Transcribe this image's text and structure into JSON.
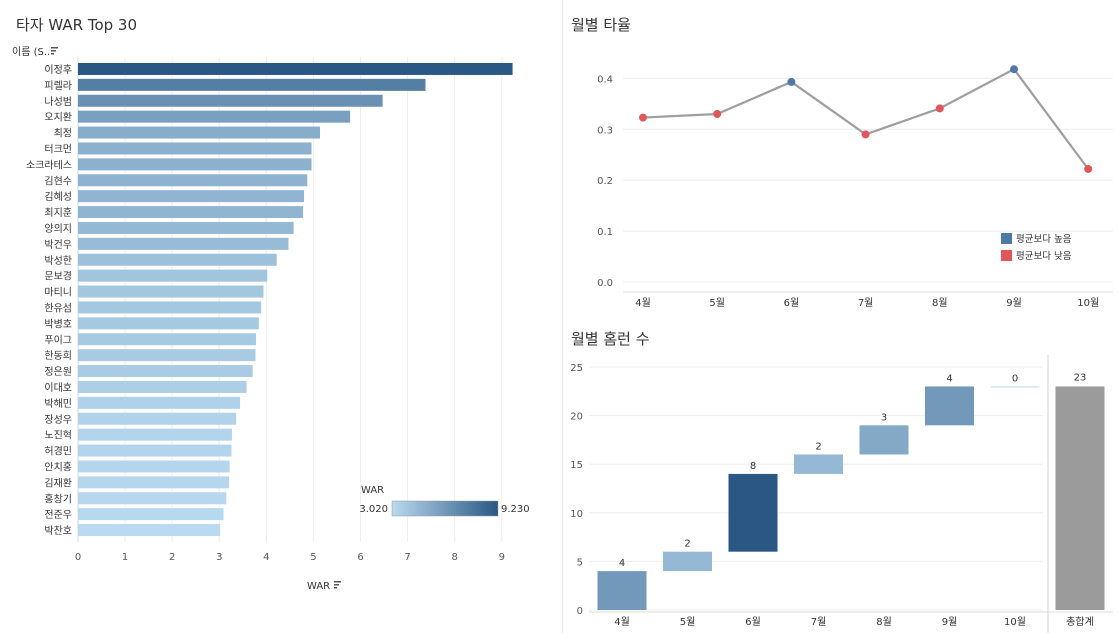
{
  "colors": {
    "bar_low": "#b9daf0",
    "bar_high": "#2a5783",
    "line": "#9e9e9e",
    "above_avg": "#4e79a7",
    "below_avg": "#e15759",
    "total_bar": "#9b9b9b",
    "grid": "#eeeeee"
  },
  "war_panel": {
    "title": "타자 WAR Top 30",
    "row_header": "이름 (S..",
    "sort_icon": "sort-descending-icon",
    "legend_title": "WAR",
    "legend_min": "3.020",
    "legend_max": "9.230"
  },
  "batting_panel": {
    "title": "월별 타율",
    "legend": [
      {
        "label": "평균보다 높음",
        "color": "#4e79a7"
      },
      {
        "label": "평균보다 낮음",
        "color": "#e15759"
      }
    ]
  },
  "hr_panel": {
    "title": "월별 홈런 수"
  },
  "chart_data": [
    {
      "type": "bar",
      "orientation": "horizontal",
      "title": "타자 WAR Top 30",
      "xlabel": "WAR",
      "ylabel": "이름 (S..",
      "xlim": [
        0,
        9.6
      ],
      "xticks": [
        0,
        1,
        2,
        3,
        4,
        5,
        6,
        7,
        8,
        9
      ],
      "categories": [
        "이정후",
        "피렐라",
        "나성범",
        "오지환",
        "최정",
        "터크먼",
        "소크라테스",
        "김현수",
        "김혜성",
        "최지훈",
        "양의지",
        "박건우",
        "박성한",
        "문보경",
        "마티니",
        "한유섬",
        "박병호",
        "푸이그",
        "한동희",
        "정은원",
        "이대호",
        "박해민",
        "장성우",
        "노진혁",
        "허경민",
        "안치홍",
        "김재환",
        "홍창기",
        "전준우",
        "박찬호"
      ],
      "values": [
        9.23,
        7.38,
        6.47,
        5.78,
        5.14,
        4.96,
        4.96,
        4.87,
        4.8,
        4.78,
        4.58,
        4.47,
        4.22,
        4.02,
        3.94,
        3.89,
        3.84,
        3.78,
        3.77,
        3.71,
        3.58,
        3.44,
        3.36,
        3.27,
        3.26,
        3.22,
        3.21,
        3.15,
        3.09,
        3.02
      ],
      "color_scale": {
        "field": "WAR",
        "min": 3.02,
        "max": 9.23
      }
    },
    {
      "type": "line",
      "title": "월별 타율",
      "categories": [
        "4월",
        "5월",
        "6월",
        "7월",
        "8월",
        "9월",
        "10월"
      ],
      "values": [
        0.323,
        0.33,
        0.393,
        0.29,
        0.341,
        0.418,
        0.222
      ],
      "status": [
        "below",
        "below",
        "above",
        "below",
        "below",
        "above",
        "below"
      ],
      "ylim": [
        0,
        0.44
      ],
      "yticks": [
        0.0,
        0.1,
        0.2,
        0.3,
        0.4
      ],
      "ytick_labels": [
        "0.0",
        "0.1",
        "0.2",
        "0.3",
        "0.4"
      ]
    },
    {
      "type": "bar",
      "subtype": "waterfall",
      "title": "월별 홈런 수",
      "categories": [
        "4월",
        "5월",
        "6월",
        "7월",
        "8월",
        "9월",
        "10월"
      ],
      "values": [
        4,
        2,
        8,
        2,
        3,
        4,
        0
      ],
      "total_label": "총합계",
      "total": 23,
      "ylim": [
        0,
        25
      ],
      "yticks": [
        0,
        5,
        10,
        15,
        20,
        25
      ]
    }
  ]
}
